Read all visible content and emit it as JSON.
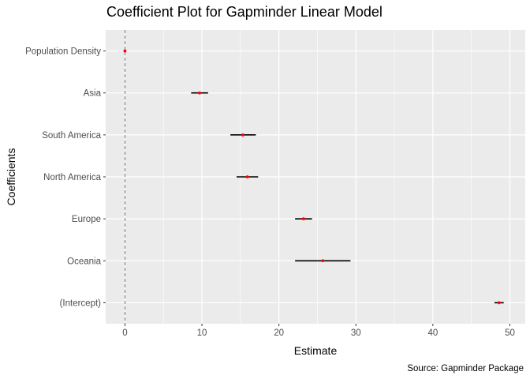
{
  "chart_data": {
    "type": "coefficient",
    "title": "Coefficient Plot for Gapminder Linear Model",
    "xlabel": "Estimate",
    "ylabel": "Coefficients",
    "caption": "Source: Gapminder Package",
    "xlim": [
      -2.5,
      52
    ],
    "x_ticks": [
      0,
      10,
      20,
      30,
      40,
      50
    ],
    "x_tick_labels": [
      "0",
      "10",
      "20",
      "30",
      "40",
      "50"
    ],
    "reference_line": 0,
    "grid": true,
    "point_color": "#ff0000",
    "interval_color": "#000000",
    "panel_background": "#ebebeb",
    "coefficients": [
      {
        "name": "Population Density",
        "estimate": 0.0,
        "low": 0.0,
        "high": 0.0
      },
      {
        "name": "Asia",
        "estimate": 9.7,
        "low": 8.6,
        "high": 10.8
      },
      {
        "name": "South America",
        "estimate": 15.3,
        "low": 13.7,
        "high": 17.0
      },
      {
        "name": "North America",
        "estimate": 15.9,
        "low": 14.5,
        "high": 17.3
      },
      {
        "name": "Europe",
        "estimate": 23.2,
        "low": 22.1,
        "high": 24.3
      },
      {
        "name": "Oceania",
        "estimate": 25.7,
        "low": 22.1,
        "high": 29.3
      },
      {
        "name": "(Intercept)",
        "estimate": 48.6,
        "low": 48.0,
        "high": 49.2
      }
    ]
  }
}
